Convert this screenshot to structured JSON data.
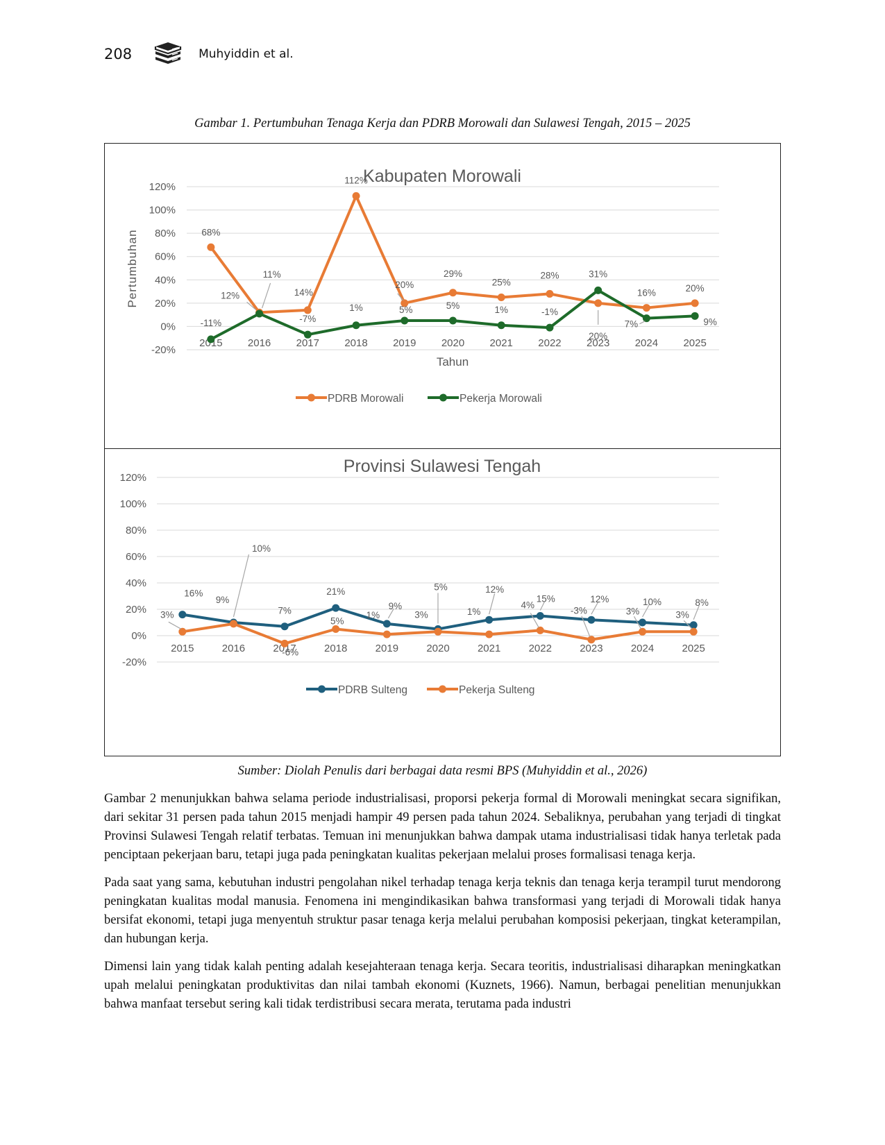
{
  "header": {
    "page_number": "208",
    "author": "Muhyiddin et al.",
    "logo_icon": "book-stack-icon"
  },
  "figure": {
    "caption": "Gambar 1. Pertumbuhan Tenaga Kerja dan PDRB Morowali dan Sulawesi Tengah, 2015 – 2025",
    "source": "Sumber: Diolah Penulis dari berbagai data resmi BPS (Muhyiddin et al., 2026)"
  },
  "chart_data": [
    {
      "type": "line",
      "title": "Kabupaten Morowali",
      "xlabel": "Tahun",
      "ylabel": "Pertumbuhan",
      "x": [
        "2015",
        "2016",
        "2017",
        "2018",
        "2019",
        "2020",
        "2021",
        "2022",
        "2023",
        "2024",
        "2025"
      ],
      "yticks": [
        "-20%",
        "0%",
        "20%",
        "40%",
        "60%",
        "80%",
        "100%",
        "120%"
      ],
      "ylim": [
        -20,
        120
      ],
      "grid": true,
      "legend": "bottom",
      "series": [
        {
          "name": "PDRB Morowali",
          "color": "#E87B35",
          "values": [
            68,
            12,
            14,
            112,
            20,
            29,
            25,
            28,
            20,
            16,
            20
          ],
          "labels": [
            "68%",
            "12%",
            "14%",
            "112%",
            "20%",
            "29%",
            "25%",
            "28%",
            "20%",
            "16%",
            "20%"
          ]
        },
        {
          "name": "Pekerja Morowali",
          "color": "#1E6B2A",
          "values": [
            -11,
            11,
            -7,
            1,
            5,
            5,
            1,
            -1,
            31,
            7,
            9
          ],
          "labels": [
            "-11%",
            "11%",
            "-7%",
            "1%",
            "5%",
            "5%",
            "1%",
            "-1%",
            "31%",
            "7%",
            "9%"
          ]
        }
      ]
    },
    {
      "type": "line",
      "title": "Provinsi Sulawesi Tengah",
      "x": [
        "2015",
        "2016",
        "2017",
        "2018",
        "2019",
        "2020",
        "2021",
        "2022",
        "2023",
        "2024",
        "2025"
      ],
      "yticks": [
        "-20%",
        "0%",
        "20%",
        "40%",
        "60%",
        "80%",
        "100%",
        "120%"
      ],
      "ylim": [
        -20,
        120
      ],
      "grid": true,
      "legend": "bottom",
      "series": [
        {
          "name": "PDRB Sulteng",
          "color": "#1F5F7E",
          "values": [
            16,
            10,
            7,
            21,
            9,
            5,
            12,
            15,
            12,
            10,
            8
          ],
          "labels": [
            "16%",
            "10%",
            "7%",
            "21%",
            "9%",
            "5%",
            "12%",
            "15%",
            "12%",
            "10%",
            "8%"
          ]
        },
        {
          "name": "Pekerja Sulteng",
          "color": "#E87B35",
          "values": [
            3,
            9,
            -6,
            5,
            1,
            3,
            1,
            4,
            -3,
            3,
            3
          ],
          "labels": [
            "3%",
            "9%",
            "-6%",
            "5%",
            "1%",
            "3%",
            "1%",
            "4%",
            "-3%",
            "3%",
            "3%"
          ]
        }
      ]
    }
  ],
  "body": {
    "paragraphs": [
      "Gambar 2 menunjukkan bahwa selama periode industrialisasi, proporsi pekerja formal di Morowali meningkat secara signifikan, dari sekitar 31 persen pada tahun 2015 menjadi hampir 49 persen pada tahun 2024. Sebaliknya, perubahan yang terjadi di tingkat Provinsi Sulawesi Tengah relatif terbatas. Temuan ini menunjukkan bahwa dampak utama industrialisasi tidak hanya terletak pada penciptaan pekerjaan baru, tetapi juga pada peningkatan kualitas pekerjaan melalui proses formalisasi tenaga kerja.",
      "Pada saat yang sama, kebutuhan industri pengolahan nikel terhadap tenaga kerja teknis dan tenaga kerja terampil turut mendorong peningkatan kualitas modal manusia. Fenomena ini mengindikasikan bahwa transformasi yang terjadi di Morowali tidak hanya bersifat ekonomi, tetapi juga menyentuh struktur pasar tenaga kerja melalui perubahan komposisi pekerjaan, tingkat keterampilan, dan hubungan kerja.",
      "Dimensi lain yang tidak kalah penting adalah kesejahteraan tenaga kerja. Secara teoritis, industrialisasi diharapkan meningkatkan upah melalui peningkatan produktivitas dan nilai tambah ekonomi (Kuznets, 1966). Namun, berbagai penelitian menunjukkan bahwa manfaat tersebut sering kali tidak terdistribusi secara merata, terutama pada industri"
    ]
  }
}
